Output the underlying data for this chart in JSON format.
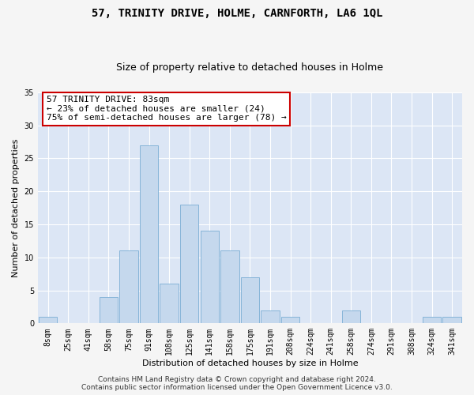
{
  "title": "57, TRINITY DRIVE, HOLME, CARNFORTH, LA6 1QL",
  "subtitle": "Size of property relative to detached houses in Holme",
  "xlabel": "Distribution of detached houses by size in Holme",
  "ylabel": "Number of detached properties",
  "categories": [
    "8sqm",
    "25sqm",
    "41sqm",
    "58sqm",
    "75sqm",
    "91sqm",
    "108sqm",
    "125sqm",
    "141sqm",
    "158sqm",
    "175sqm",
    "191sqm",
    "208sqm",
    "224sqm",
    "241sqm",
    "258sqm",
    "274sqm",
    "291sqm",
    "308sqm",
    "324sqm",
    "341sqm"
  ],
  "values": [
    1,
    0,
    0,
    4,
    11,
    27,
    6,
    18,
    14,
    11,
    7,
    2,
    1,
    0,
    0,
    2,
    0,
    0,
    0,
    1,
    1
  ],
  "bar_color": "#c5d8ed",
  "bar_edge_color": "#7aadd4",
  "ylim": [
    0,
    35
  ],
  "yticks": [
    0,
    5,
    10,
    15,
    20,
    25,
    30,
    35
  ],
  "annotation_text_line1": "57 TRINITY DRIVE: 83sqm",
  "annotation_text_line2": "← 23% of detached houses are smaller (24)",
  "annotation_text_line3": "75% of semi-detached houses are larger (78) →",
  "annotation_box_color": "#ffffff",
  "annotation_box_edge_color": "#cc0000",
  "plot_bg_color": "#dce6f5",
  "fig_bg_color": "#f5f5f5",
  "grid_color": "#ffffff",
  "footer_line1": "Contains HM Land Registry data © Crown copyright and database right 2024.",
  "footer_line2": "Contains public sector information licensed under the Open Government Licence v3.0.",
  "title_fontsize": 10,
  "subtitle_fontsize": 9,
  "axis_label_fontsize": 8,
  "tick_fontsize": 7,
  "annotation_fontsize": 8,
  "footer_fontsize": 6.5
}
